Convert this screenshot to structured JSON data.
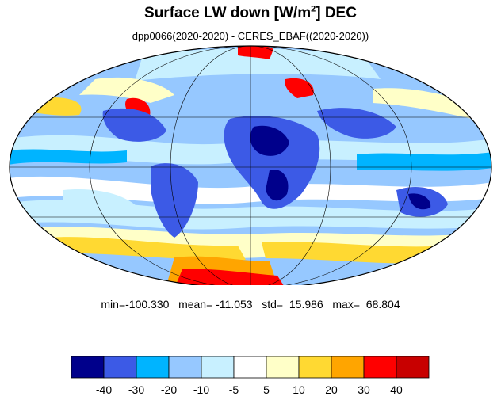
{
  "title": {
    "main": "Surface LW down [W/m",
    "sup": "2",
    "tail": "]  DEC"
  },
  "subtitle": "dpp0066(2020-2020) - CERES_EBAF((2020-2020))",
  "stats": {
    "text": "min=-100.330   mean= -11.053   std=  15.986   max=  68.804"
  },
  "colorbar": {
    "colors": [
      "#00008b",
      "#3c5ae6",
      "#00b4ff",
      "#96c8ff",
      "#c8f0ff",
      "#ffffff",
      "#ffffc8",
      "#ffd932",
      "#ffa500",
      "#ff0000",
      "#c80000"
    ],
    "labels": [
      "-40",
      "-30",
      "-20",
      "-10",
      "-5",
      "5",
      "10",
      "20",
      "30",
      "40"
    ]
  },
  "map": {
    "projection": "mollweide",
    "background_color": "#96c8ff",
    "grid_color": "#000000"
  }
}
